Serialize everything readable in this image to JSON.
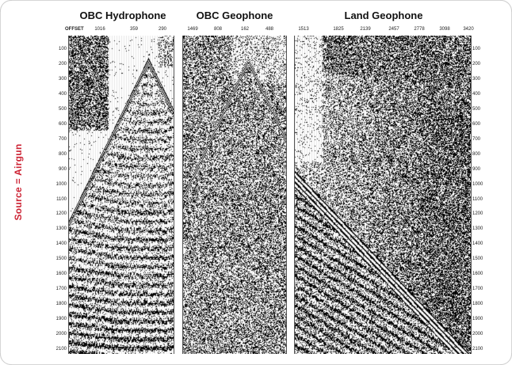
{
  "side_label": "Source = Airgun",
  "offset_label": "OFFSET",
  "panels": [
    {
      "title": "OBC Hydrophone",
      "offsets": [
        "1016",
        "359",
        "290"
      ],
      "time_ticks": [
        "100",
        "200",
        "300",
        "400",
        "500",
        "600",
        "700",
        "800",
        "900",
        "1000",
        "1100",
        "1200",
        "1300",
        "1400",
        "1500",
        "1600",
        "1700",
        "1800",
        "1900",
        "2000",
        "2100"
      ]
    },
    {
      "title": "OBC Geophone",
      "offsets": [
        "1469",
        "808",
        "162",
        "488"
      ],
      "time_ticks": []
    },
    {
      "title": "Land Geophone",
      "offsets": [
        "1513",
        "1825",
        "2139",
        "2457",
        "2778",
        "3098",
        "3420"
      ],
      "time_ticks": [
        "100",
        "200",
        "300",
        "400",
        "500",
        "600",
        "700",
        "800",
        "900",
        "1000",
        "1100",
        "1200",
        "1300",
        "1400",
        "1500",
        "1600",
        "1700",
        "1800",
        "1900",
        "2000",
        "2100"
      ]
    }
  ],
  "colors": {
    "side_label": "#cc2233",
    "trace_ink": "#000000",
    "background": "#ffffff"
  }
}
